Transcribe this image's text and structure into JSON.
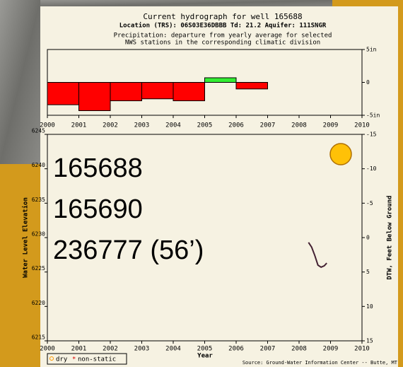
{
  "chart_data": [
    {
      "type": "bar",
      "title": "Current hydrograph for well 165688",
      "subtitle": "Location (TRS): 06S03E36DBBB Td: 21.2 Aquifer: 111SNGR",
      "caption": [
        "Precipitation: departure from yearly average for selected",
        "NWS stations in the corresponding climatic division"
      ],
      "x": [
        2000,
        2001,
        2002,
        2003,
        2004,
        2005,
        2006
      ],
      "values": [
        -3.4,
        -4.3,
        -2.8,
        -2.5,
        -2.8,
        0.7,
        -1.0
      ],
      "colors": [
        "#ff0000",
        "#ff0000",
        "#ff0000",
        "#ff0000",
        "#ff0000",
        "#33ee33",
        "#ff0000"
      ],
      "xlim": [
        2000,
        2010
      ],
      "xticks": [
        2000,
        2001,
        2002,
        2003,
        2004,
        2005,
        2006,
        2007,
        2008,
        2009,
        2010
      ],
      "ylim": [
        -5,
        5
      ],
      "yticks": [
        {
          "value": 5,
          "label": "5in"
        },
        0,
        {
          "value": -5,
          "label": "-5in"
        }
      ]
    },
    {
      "type": "line",
      "xlabel": "Year",
      "ylabel": "Water Level Elevation",
      "y2label": "DTW, Feet Below Ground",
      "series": [
        {
          "name": "non-static",
          "color": "#442233",
          "x": [
            2008.3,
            2008.4,
            2008.5,
            2008.6,
            2008.7,
            2008.8,
            2008.88
          ],
          "values": [
            6229.3,
            6228.6,
            6227.4,
            6226.0,
            6225.7,
            6225.9,
            6226.3
          ]
        }
      ],
      "legend": [
        "dry",
        "non-static"
      ],
      "xlim": [
        2000,
        2010
      ],
      "xticks": [
        2000,
        2001,
        2002,
        2003,
        2004,
        2005,
        2006,
        2007,
        2008,
        2009,
        2010
      ],
      "ylim": [
        6215,
        6245
      ],
      "yticks": [
        6215,
        6220,
        6225,
        6230,
        6235,
        6240,
        6245
      ],
      "y2lim": [
        15,
        -15
      ],
      "y2ticks": [
        -15,
        -10,
        -5,
        0,
        5,
        10,
        15
      ],
      "source": "Source: Ground-Water Information Center -- Butte, MT"
    }
  ],
  "overlay_labels": [
    "165688",
    "165690",
    "236777 (56’)"
  ]
}
